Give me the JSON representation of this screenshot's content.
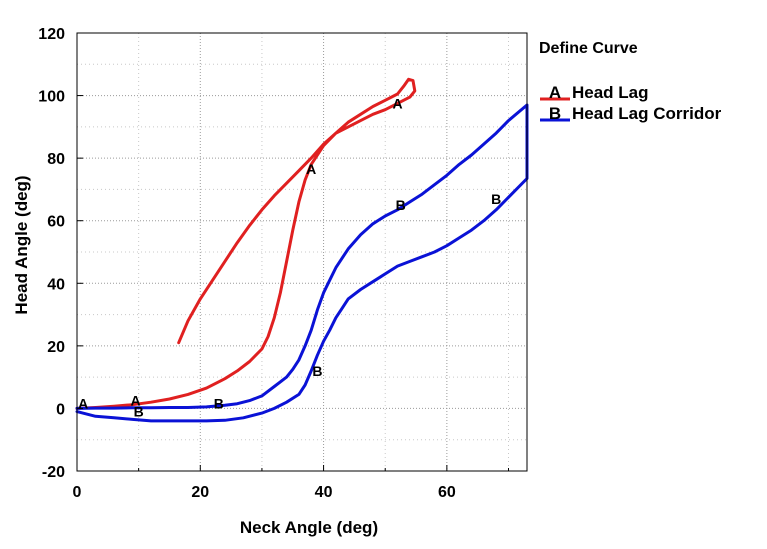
{
  "chart_data": {
    "type": "line",
    "xlabel": "Neck Angle (deg)",
    "ylabel": "Head Angle (deg)",
    "xlim": [
      0,
      73
    ],
    "ylim": [
      -20,
      120
    ],
    "x_ticks": [
      0,
      20,
      40,
      60
    ],
    "y_ticks": [
      -20,
      0,
      20,
      40,
      60,
      80,
      100,
      120
    ],
    "grid": true,
    "legend": {
      "title": "Define Curve",
      "placement": "right",
      "entries": [
        {
          "marker": "A",
          "label": "Head Lag"
        },
        {
          "marker": "B",
          "label": "Head Lag Corridor"
        }
      ]
    },
    "series": [
      {
        "name": "Head Lag",
        "marker": "A",
        "color": "#e02020",
        "points": [
          [
            0,
            0
          ],
          [
            3,
            0.3
          ],
          [
            6,
            0.7
          ],
          [
            9,
            1.2
          ],
          [
            12,
            2
          ],
          [
            15,
            3
          ],
          [
            18,
            4.5
          ],
          [
            21,
            6.5
          ],
          [
            24,
            9.5
          ],
          [
            26,
            12
          ],
          [
            28,
            15
          ],
          [
            30,
            19
          ],
          [
            31,
            23
          ],
          [
            32,
            29
          ],
          [
            33,
            37
          ],
          [
            34,
            47
          ],
          [
            35,
            57
          ],
          [
            36,
            66
          ],
          [
            37,
            73
          ],
          [
            38,
            78
          ],
          [
            40,
            84
          ],
          [
            42,
            88
          ],
          [
            44,
            91.5
          ],
          [
            46,
            94
          ],
          [
            48,
            96.5
          ],
          [
            50,
            98.5
          ],
          [
            52,
            100.5
          ],
          [
            53,
            103
          ],
          [
            53.8,
            105.2
          ],
          [
            54.5,
            104.8
          ],
          [
            54.8,
            101.5
          ],
          [
            54,
            99.5
          ],
          [
            52,
            97.5
          ],
          [
            50,
            95.5
          ],
          [
            48,
            94
          ],
          [
            46,
            92
          ],
          [
            44,
            90
          ],
          [
            42,
            88
          ],
          [
            40,
            84.5
          ],
          [
            38,
            80
          ],
          [
            36,
            76
          ],
          [
            34,
            72
          ],
          [
            32,
            68
          ],
          [
            30,
            63.5
          ],
          [
            28,
            58.5
          ],
          [
            26,
            53
          ],
          [
            24,
            47
          ],
          [
            22,
            41
          ],
          [
            20,
            35
          ],
          [
            18,
            28
          ],
          [
            16.5,
            21
          ]
        ],
        "labels": [
          [
            1,
            1.5
          ],
          [
            9.5,
            2.5
          ],
          [
            38,
            76.5
          ],
          [
            52,
            97.5
          ]
        ]
      },
      {
        "name": "Head Lag Corridor",
        "marker": "B",
        "color": "#0a12d6",
        "points": [
          [
            0,
            -1
          ],
          [
            3,
            -2.5
          ],
          [
            6,
            -3
          ],
          [
            9,
            -3.5
          ],
          [
            12,
            -4
          ],
          [
            15,
            -4
          ],
          [
            18,
            -4
          ],
          [
            21,
            -4
          ],
          [
            24,
            -3.8
          ],
          [
            27,
            -3
          ],
          [
            30,
            -1.5
          ],
          [
            32,
            0
          ],
          [
            34,
            2
          ],
          [
            36,
            4.5
          ],
          [
            37,
            7.5
          ],
          [
            38,
            12
          ],
          [
            39,
            17
          ],
          [
            40,
            21.5
          ],
          [
            41,
            25
          ],
          [
            42,
            29
          ],
          [
            43,
            32
          ],
          [
            44,
            35
          ],
          [
            46,
            38
          ],
          [
            48,
            40.5
          ],
          [
            50,
            43
          ],
          [
            52,
            45.5
          ],
          [
            54,
            47
          ],
          [
            56,
            48.5
          ],
          [
            58,
            50
          ],
          [
            60,
            52
          ],
          [
            62,
            54.5
          ],
          [
            64,
            57
          ],
          [
            66,
            60
          ],
          [
            68,
            63.5
          ],
          [
            70,
            67.5
          ],
          [
            73,
            73.5
          ],
          [
            73,
            97
          ],
          [
            70,
            92
          ],
          [
            68,
            88
          ],
          [
            66,
            84.5
          ],
          [
            64,
            81
          ],
          [
            62,
            78
          ],
          [
            60,
            74.5
          ],
          [
            58,
            71.5
          ],
          [
            56,
            68.5
          ],
          [
            54,
            66
          ],
          [
            52,
            63.5
          ],
          [
            50,
            61.5
          ],
          [
            48,
            59
          ],
          [
            46,
            55.5
          ],
          [
            44,
            51
          ],
          [
            42,
            45
          ],
          [
            41,
            41
          ],
          [
            40,
            37
          ],
          [
            39,
            31.5
          ],
          [
            38,
            25
          ],
          [
            37,
            20
          ],
          [
            36,
            15.5
          ],
          [
            35,
            12.5
          ],
          [
            34,
            10
          ],
          [
            32,
            7
          ],
          [
            30,
            4
          ],
          [
            28,
            2.5
          ],
          [
            26,
            1.5
          ],
          [
            24,
            1
          ],
          [
            21,
            0.5
          ],
          [
            18,
            0.3
          ],
          [
            15,
            0.3
          ],
          [
            12,
            0.2
          ],
          [
            9,
            0.2
          ],
          [
            6,
            0.1
          ],
          [
            3,
            0.1
          ],
          [
            0,
            0
          ]
        ],
        "labels": [
          [
            10,
            -1
          ],
          [
            23,
            1.5
          ],
          [
            39,
            12
          ],
          [
            52.5,
            65
          ],
          [
            68,
            67
          ]
        ]
      }
    ]
  }
}
